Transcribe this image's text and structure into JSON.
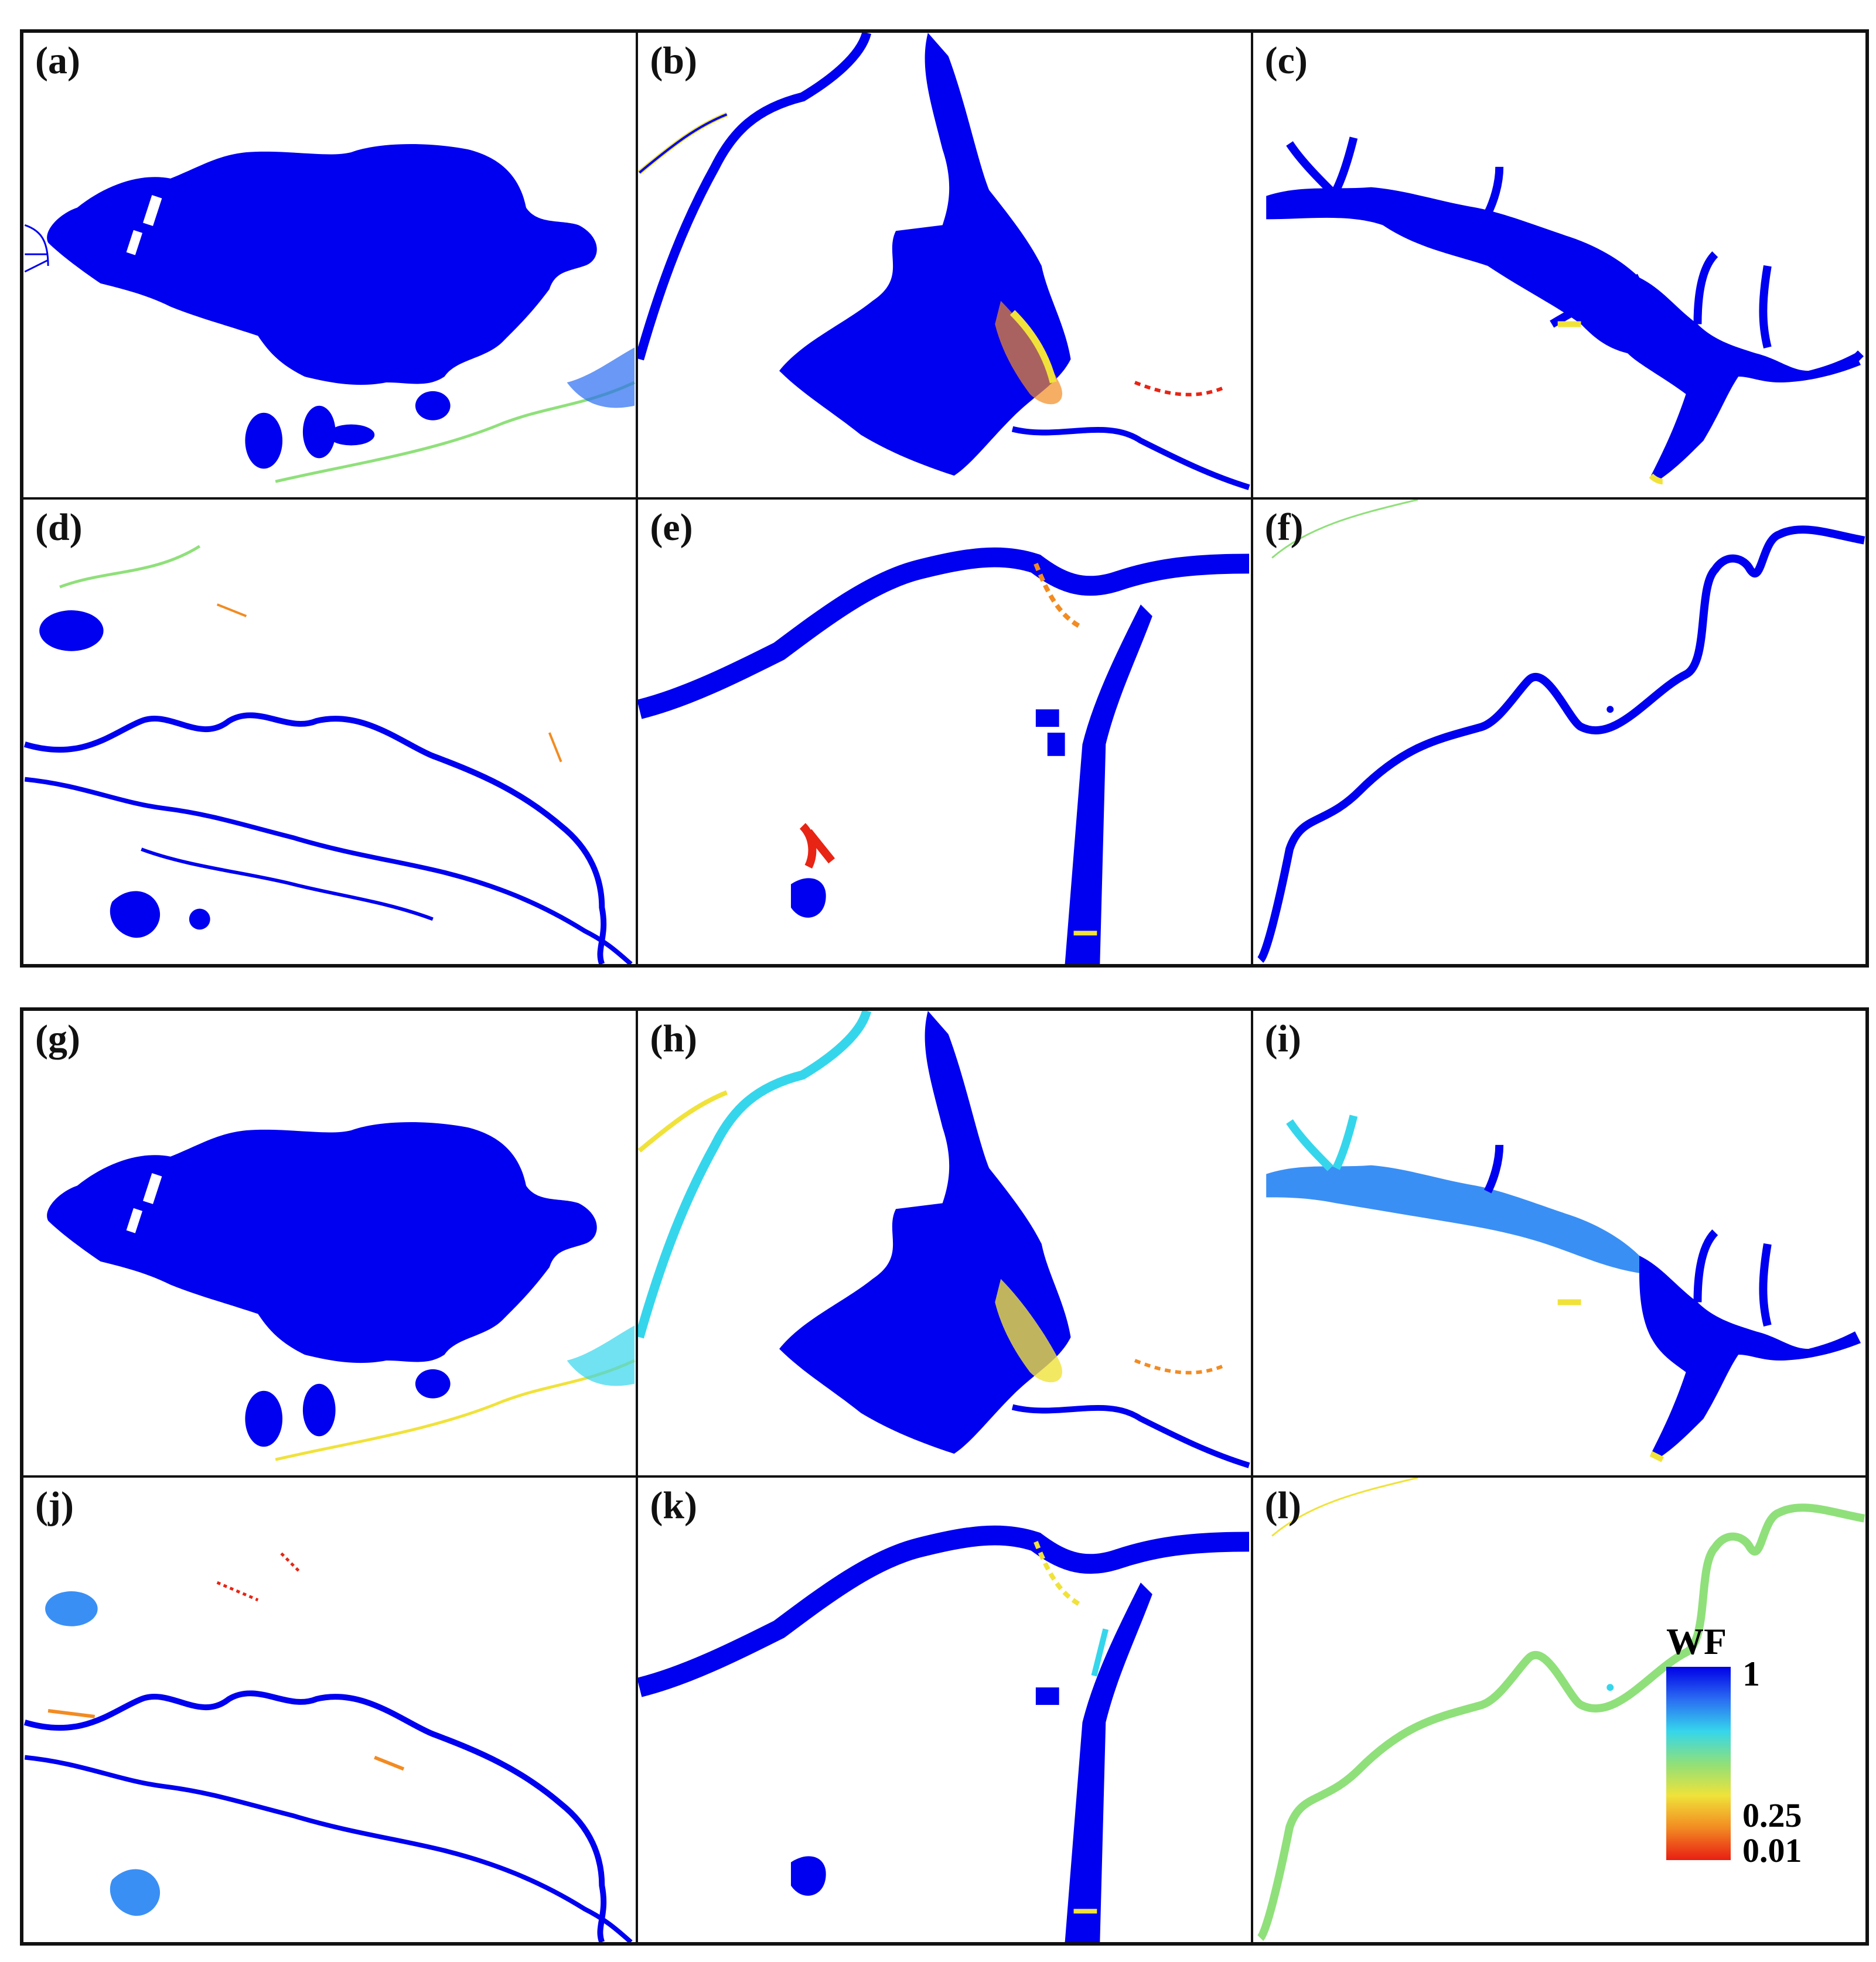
{
  "colors": {
    "water": "#0000f0",
    "light_blue": "#3a8ff5",
    "cyan": "#35d6ec",
    "green": "#8fe07a",
    "yellow": "#f0e23a",
    "orange": "#f28b22",
    "red": "#e82414"
  },
  "panels": [
    {
      "label": "(a)"
    },
    {
      "label": "(b)"
    },
    {
      "label": "(c)"
    },
    {
      "label": "(d)"
    },
    {
      "label": "(e)"
    },
    {
      "label": "(f)"
    },
    {
      "label": "(g)"
    },
    {
      "label": "(h)"
    },
    {
      "label": "(i)"
    },
    {
      "label": "(j)"
    },
    {
      "label": "(k)"
    },
    {
      "label": "(l)"
    }
  ],
  "legend": {
    "title": "WF",
    "max_label": "1",
    "mid_label": "0.25",
    "min_label": "0.01",
    "gradient": [
      "#0000e6",
      "#2a6cf2",
      "#35d6ec",
      "#8fe07a",
      "#f0e23a",
      "#f28b22",
      "#e81e12"
    ]
  }
}
